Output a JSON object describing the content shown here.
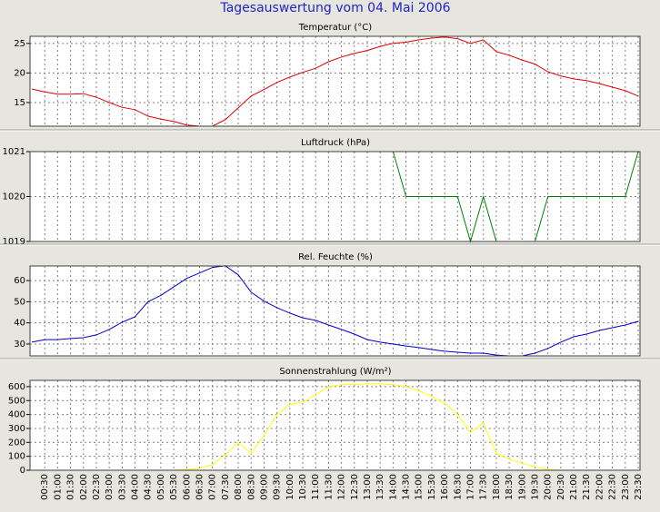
{
  "title": "Tagesauswertung vom 04. Mai 2006",
  "chart_data": [
    {
      "type": "line",
      "title": "Temperatur (°C)",
      "series": [
        {
          "name": "Temperatur",
          "color": "#e00000",
          "values": [
            17.3,
            16.8,
            16.4,
            16.4,
            16.5,
            15.9,
            15.0,
            14.2,
            13.8,
            12.7,
            12.2,
            11.8,
            11.2,
            11.0,
            11.0,
            12.1,
            14.1,
            16.1,
            17.2,
            18.4,
            19.3,
            20.1,
            20.8,
            21.9,
            22.7,
            23.3,
            23.8,
            24.5,
            25.0,
            25.2,
            25.6,
            25.9,
            26.1,
            25.8,
            25.0,
            25.6,
            23.6,
            23.0,
            22.2,
            21.5,
            20.2,
            19.5,
            19.0,
            18.7,
            18.2,
            17.6,
            17.0,
            16.1
          ]
        }
      ],
      "ylim": [
        11,
        26.2
      ],
      "yticks": [
        15,
        20,
        25
      ],
      "grid": true
    },
    {
      "type": "line",
      "title": "Luftdruck (hPa)",
      "series": [
        {
          "name": "Luftdruck",
          "color": "#008000",
          "values": [
            1021,
            1021,
            1021,
            1021,
            1021,
            1021,
            1021,
            1021,
            1021,
            1021,
            1021,
            1021,
            1021,
            1021,
            1021,
            1021,
            1021,
            1021,
            1021,
            1021,
            1021,
            1021,
            1021,
            1021,
            1021,
            1021,
            1021,
            1021,
            1021,
            1020,
            1020,
            1020,
            1020,
            1020,
            1019,
            1020,
            1019,
            1019,
            1019,
            1019,
            1020,
            1020,
            1020,
            1020,
            1020,
            1020,
            1020,
            1021
          ]
        }
      ],
      "ylim": [
        1019,
        1021
      ],
      "yticks": [
        1019,
        1020,
        1021
      ],
      "grid": true
    },
    {
      "type": "line",
      "title": "Rel. Feuchte (%)",
      "series": [
        {
          "name": "Rel. Feuchte",
          "color": "#0000cc",
          "values": [
            30.9,
            32.1,
            32.1,
            32.6,
            33.0,
            34.3,
            36.9,
            40.3,
            42.9,
            50.0,
            53.0,
            57.0,
            61.0,
            63.6,
            66.2,
            67.0,
            62.7,
            54.5,
            50.3,
            47.2,
            44.6,
            42.4,
            41.2,
            39.0,
            36.9,
            34.7,
            32.1,
            30.9,
            30.0,
            29.1,
            28.3,
            27.4,
            26.6,
            26.1,
            25.7,
            25.7,
            24.8,
            24.4,
            24.4,
            25.7,
            27.9,
            30.9,
            33.4,
            34.7,
            36.4,
            37.7,
            39.0,
            40.7
          ]
        }
      ],
      "ylim": [
        24.4,
        66.9
      ],
      "yticks": [
        30,
        40,
        50,
        60
      ],
      "grid": true
    },
    {
      "type": "line",
      "title": "Sonnenstrahlung (W/m²)",
      "categories": [
        null,
        "00:30",
        "01:00",
        "01:30",
        "02:00",
        "02:30",
        "03:00",
        "03:30",
        "04:00",
        "04:30",
        "05:00",
        "05:30",
        "06:00",
        "06:30",
        "07:00",
        "07:30",
        "08:00",
        "08:30",
        "09:00",
        "09:30",
        "10:00",
        "10:30",
        "11:00",
        "11:30",
        "12:00",
        "12:30",
        "13:00",
        "13:30",
        "14:00",
        "14:30",
        "15:00",
        "15:30",
        "16:00",
        "16:30",
        "17:00",
        "17:30",
        "18:00",
        "18:30",
        "19:00",
        "19:30",
        "20:00",
        "20:30",
        "21:00",
        "21:30",
        "22:00",
        "22:30",
        "23:00",
        "23:30"
      ],
      "series": [
        {
          "name": "Sonnenstrahlung",
          "color": "#ffff00",
          "values": [
            0,
            0,
            0,
            0,
            0,
            0,
            0,
            0,
            0,
            0,
            0,
            0,
            5,
            15,
            40,
            110,
            200,
            120,
            250,
            400,
            470,
            490,
            540,
            600,
            615,
            615,
            620,
            620,
            615,
            600,
            570,
            530,
            480,
            400,
            270,
            340,
            120,
            80,
            50,
            25,
            5,
            0,
            0,
            0,
            0,
            0,
            0,
            0
          ]
        }
      ],
      "ylim": [
        0,
        645
      ],
      "yticks": [
        0,
        100,
        200,
        300,
        400,
        500,
        600
      ],
      "grid": true
    }
  ]
}
